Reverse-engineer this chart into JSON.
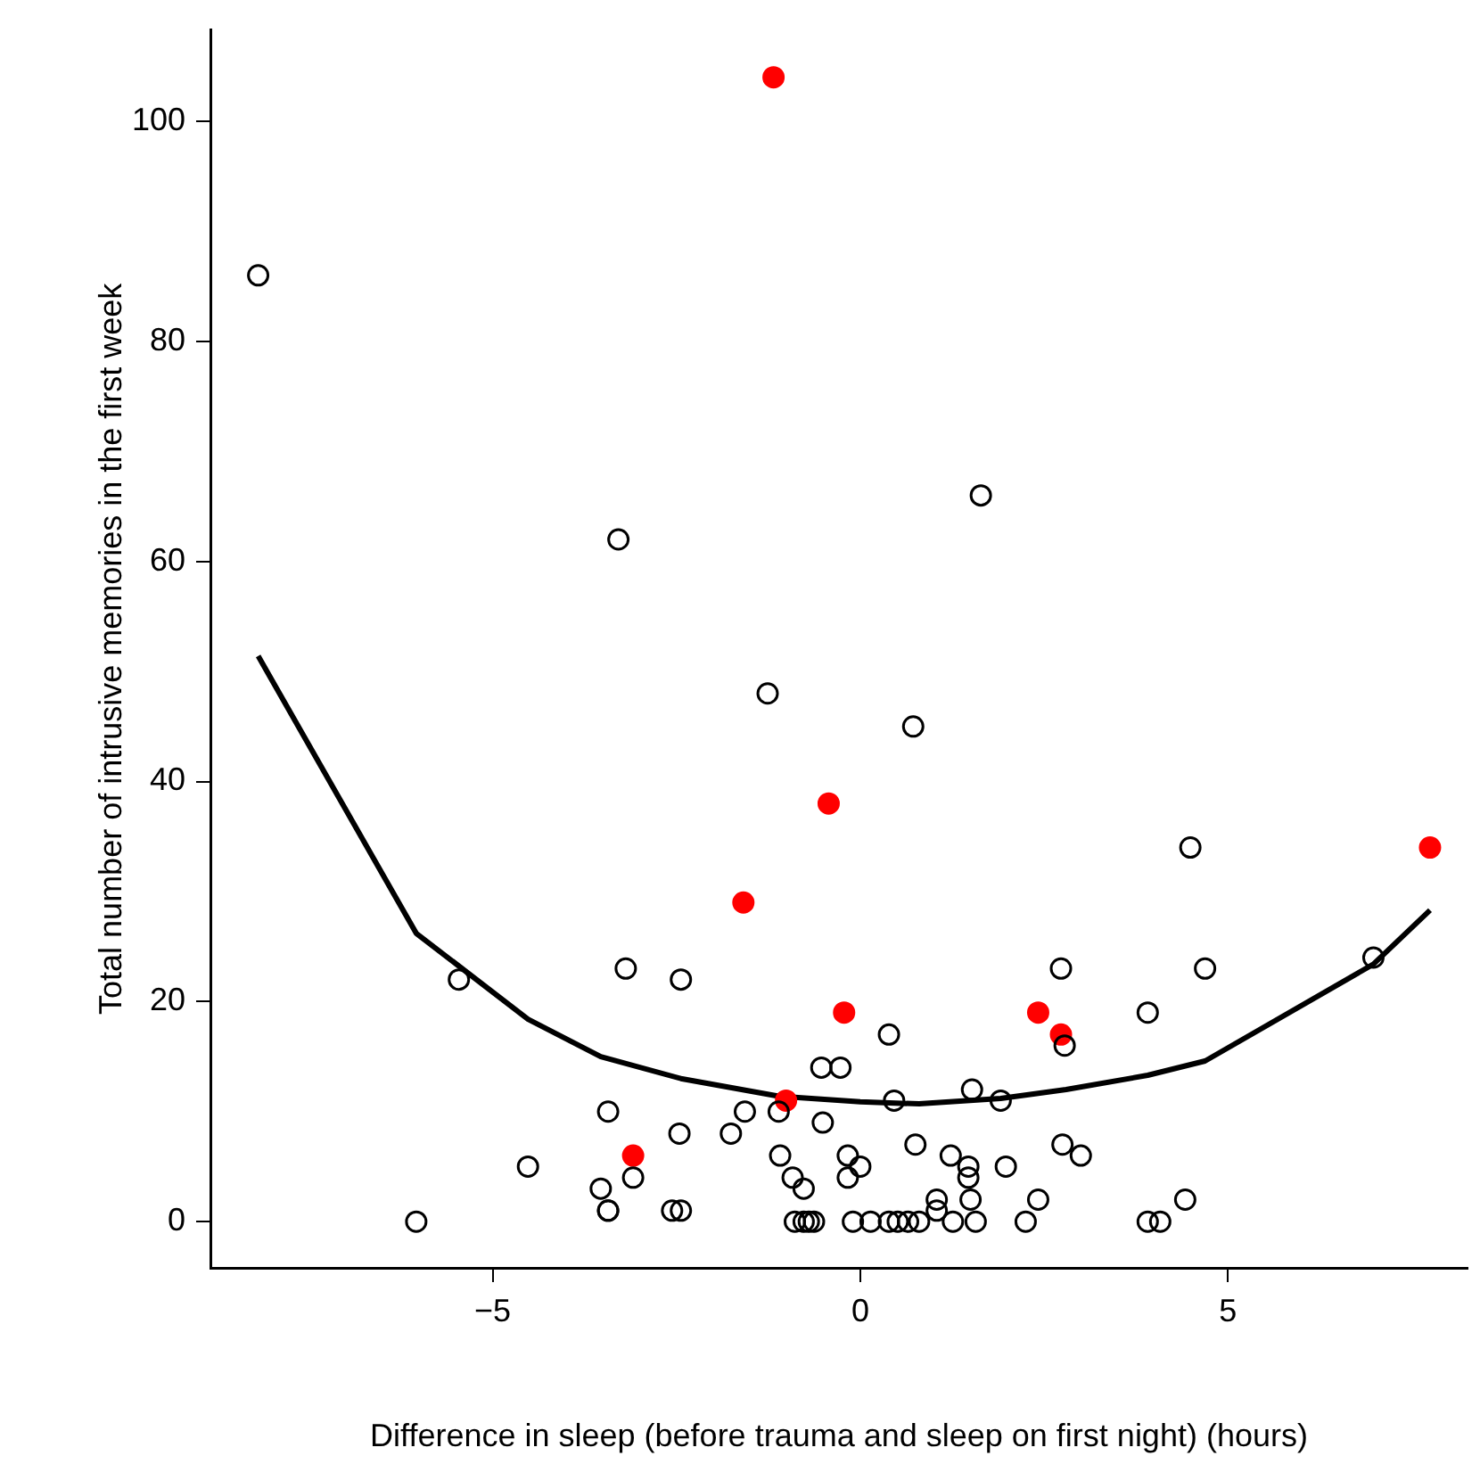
{
  "chart_data": {
    "type": "scatter",
    "xlabel": "Difference in sleep (before trauma and sleep on first night) (hours)",
    "ylabel": "Total number of intrusive memories in the first week",
    "xlim": [
      -8.84,
      8.26
    ],
    "ylim": [
      -4.2,
      108.3
    ],
    "xticks": [
      {
        "value": -5,
        "label": "−5"
      },
      0,
      5
    ],
    "yticks": [
      0,
      20,
      40,
      60,
      80,
      100
    ],
    "grid": false,
    "legend": false,
    "marker": "circle",
    "series": [
      {
        "color": "#000000",
        "x": [
          -8.19,
          -6.04,
          -5.46,
          -4.52,
          -3.53,
          -3.43,
          -3.43,
          -3.43,
          -3.29,
          -3.19,
          -3.09,
          -2.56,
          -2.44,
          -2.46,
          -2.44,
          -1.76,
          -1.57,
          -1.26,
          -1.11,
          -1.09,
          -0.92,
          -0.89,
          -0.77,
          -0.77,
          -0.7,
          -0.63,
          -0.51,
          -0.53,
          -0.27,
          -0.17,
          -0.17,
          -0.1,
          0,
          0.14,
          0.39,
          0.39,
          0.46,
          0.51,
          0.65,
          0.72,
          0.75,
          0.8,
          1.04,
          1.04,
          1.23,
          1.26,
          1.47,
          1.47,
          1.5,
          1.52,
          1.57,
          1.64,
          1.91,
          1.98,
          2.25,
          2.42,
          2.73,
          2.75,
          2.78,
          3,
          3.91,
          3.91,
          4.08,
          4.42,
          4.49,
          4.69,
          6.98
        ],
        "values": [
          86,
          0,
          22,
          5,
          3,
          10,
          1,
          1,
          62,
          23,
          4,
          1,
          1,
          8,
          22,
          8,
          10,
          48,
          10,
          6,
          4,
          0,
          3,
          0,
          0,
          0,
          9,
          14,
          14,
          6,
          4,
          0,
          5,
          0,
          0,
          17,
          11,
          0,
          0,
          45,
          7,
          0,
          2,
          1,
          6,
          0,
          5,
          4,
          2,
          12,
          0,
          66,
          11,
          5,
          0,
          2,
          23,
          7,
          16,
          6,
          19,
          0,
          0,
          2,
          34,
          23,
          24
        ]
      },
      {
        "color": "#ff0000",
        "x": [
          -1.18,
          -3.09,
          -1.59,
          -0.43,
          -1.01,
          -0.22,
          2.42,
          2.73,
          7.75
        ],
        "values": [
          104,
          6,
          29,
          38,
          11,
          19,
          19,
          17,
          34
        ]
      },
      {
        "type": "line",
        "marker": "none",
        "color": "#000000",
        "x": [
          -8.19,
          -6.04,
          -4.52,
          -3.53,
          -2.44,
          -1.11,
          0,
          0.8,
          1.91,
          2.8,
          3.91,
          4.69,
          6.98,
          7.75
        ],
        "values": [
          51.4,
          26.2,
          18.4,
          15,
          13,
          11.4,
          10.9,
          10.7,
          11.2,
          12,
          13.3,
          14.6,
          23.4,
          28.3
        ]
      }
    ]
  }
}
